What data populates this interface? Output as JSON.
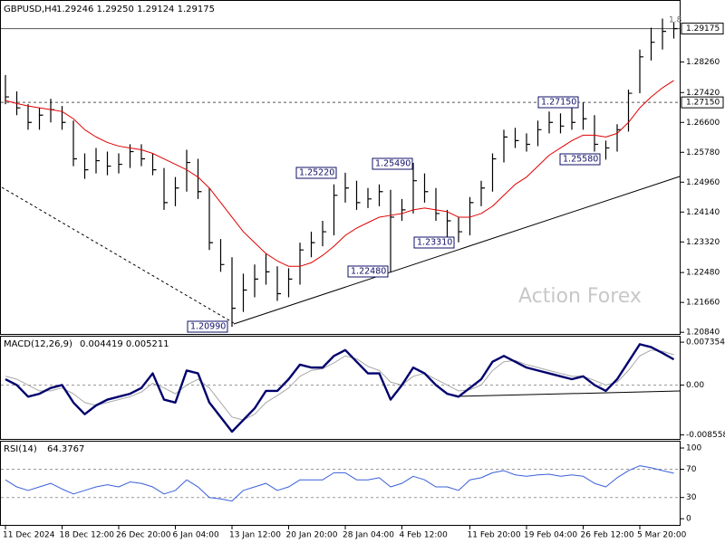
{
  "chart_data": [
    {
      "type": "ohlc",
      "title": "GBPUSD,H4",
      "subtitle": "1.29246 1.29250 1.29124 1.29175",
      "watermark": "Action Forex",
      "corner_note": "1.8",
      "color": "#000000",
      "categories": [
        "11 Dec 2024",
        null,
        null,
        null,
        null,
        "18 Dec 12:00",
        null,
        null,
        null,
        null,
        "26 Dec 20:00",
        null,
        null,
        null,
        null,
        "6 Jan 04:00",
        null,
        null,
        null,
        null,
        "13 Jan 12:00",
        null,
        null,
        null,
        null,
        "20 Jan 20:00",
        null,
        null,
        null,
        null,
        "28 Jan 04:00",
        null,
        null,
        null,
        null,
        "4 Feb 12:00",
        null,
        null,
        null,
        null,
        null,
        "11 Feb 20:00",
        null,
        null,
        null,
        null,
        "19 Feb 04:00",
        null,
        null,
        null,
        null,
        "26 Feb 12:00",
        null,
        null,
        null,
        null,
        "5 Mar 20:00",
        null,
        null,
        null
      ],
      "high": [
        1.279,
        1.2745,
        1.271,
        1.27,
        1.2725,
        1.2705,
        1.2665,
        1.2575,
        1.259,
        1.258,
        1.2575,
        1.26,
        1.26,
        1.2575,
        1.2535,
        1.251,
        1.2585,
        1.256,
        1.248,
        1.234,
        1.229,
        1.2245,
        1.227,
        1.23,
        1.2265,
        1.226,
        1.233,
        1.236,
        1.239,
        1.249,
        1.2522,
        1.25,
        1.248,
        1.249,
        1.2475,
        1.245,
        1.2549,
        1.252,
        1.248,
        1.242,
        1.24,
        1.2455,
        1.25,
        1.2575,
        1.264,
        1.2645,
        1.263,
        1.2665,
        1.269,
        1.2685,
        1.27,
        1.2715,
        1.268,
        1.261,
        1.2655,
        1.275,
        1.286,
        1.292,
        1.2945,
        1.2935
      ],
      "low": [
        1.271,
        1.268,
        1.264,
        1.264,
        1.266,
        1.264,
        1.254,
        1.2505,
        1.252,
        1.2515,
        1.252,
        1.2535,
        1.254,
        1.2515,
        1.242,
        1.243,
        1.247,
        1.245,
        1.231,
        1.225,
        1.2099,
        1.214,
        1.218,
        1.2215,
        1.217,
        1.218,
        1.2215,
        1.229,
        1.232,
        1.235,
        1.244,
        1.242,
        1.2425,
        1.243,
        1.2248,
        1.239,
        1.241,
        1.244,
        1.239,
        1.234,
        1.2331,
        1.235,
        1.243,
        1.247,
        1.255,
        1.259,
        1.258,
        1.2595,
        1.263,
        1.263,
        1.264,
        1.264,
        1.258,
        1.2558,
        1.258,
        1.2635,
        1.274,
        1.283,
        1.286,
        1.289
      ],
      "close": [
        1.273,
        1.27,
        1.266,
        1.268,
        1.2695,
        1.266,
        1.256,
        1.253,
        1.2555,
        1.254,
        1.2545,
        1.258,
        1.256,
        1.253,
        1.244,
        1.248,
        1.255,
        1.247,
        1.233,
        1.227,
        1.215,
        1.22,
        1.223,
        1.225,
        1.219,
        1.223,
        1.231,
        1.233,
        1.236,
        1.246,
        1.248,
        1.244,
        1.245,
        1.247,
        1.24,
        1.242,
        1.25,
        1.247,
        1.241,
        1.239,
        1.236,
        1.244,
        1.248,
        1.256,
        1.262,
        1.261,
        1.26,
        1.264,
        1.266,
        1.265,
        1.266,
        1.267,
        1.26,
        1.259,
        1.264,
        1.274,
        1.284,
        1.288,
        1.291,
        1.29175
      ],
      "moving_average": {
        "color": "#e00000",
        "values": [
          1.272,
          1.2712,
          1.2705,
          1.27,
          1.2695,
          1.269,
          1.267,
          1.264,
          1.262,
          1.2605,
          1.2595,
          1.259,
          1.2585,
          1.2575,
          1.256,
          1.2545,
          1.253,
          1.251,
          1.248,
          1.244,
          1.24,
          1.236,
          1.233,
          1.23,
          1.228,
          1.2265,
          1.2265,
          1.2275,
          1.2295,
          1.232,
          1.235,
          1.237,
          1.2385,
          1.24,
          1.2405,
          1.241,
          1.242,
          1.2425,
          1.242,
          1.2415,
          1.24,
          1.24,
          1.241,
          1.243,
          1.246,
          1.249,
          1.251,
          1.254,
          1.257,
          1.259,
          1.261,
          1.2625,
          1.2625,
          1.262,
          1.263,
          1.266,
          1.27,
          1.273,
          1.2755,
          1.2775
        ]
      },
      "levels": [
        {
          "value": 1.29175,
          "label": "1.29175"
        },
        {
          "value": 1.2715,
          "label": "1.27150"
        }
      ],
      "annotations": [
        {
          "value": 1.2099,
          "label": "1.20990"
        },
        {
          "value": 1.2248,
          "label": "1.22480"
        },
        {
          "value": 1.2522,
          "label": "1.25220"
        },
        {
          "value": 1.2549,
          "label": "1.25490"
        },
        {
          "value": 1.2331,
          "label": "1.23310"
        },
        {
          "value": 1.2715,
          "label": "1.27150"
        },
        {
          "value": 1.2558,
          "label": "1.25580"
        }
      ],
      "ylim": [
        1.2077,
        1.2991
      ],
      "yticks": [
        {
          "value": 1.2826,
          "label": "1.28260"
        },
        {
          "value": 1.2742,
          "label": "1.27420"
        },
        {
          "value": 1.266,
          "label": "1.26600"
        },
        {
          "value": 1.2578,
          "label": "1.25780"
        },
        {
          "value": 1.2496,
          "label": "1.24960"
        },
        {
          "value": 1.2414,
          "label": "1.24140"
        },
        {
          "value": 1.2332,
          "label": "1.23320"
        },
        {
          "value": 1.2248,
          "label": "1.22480"
        },
        {
          "value": 1.2166,
          "label": "1.21660"
        },
        {
          "value": 1.2084,
          "label": "1.20840"
        }
      ]
    },
    {
      "type": "line",
      "title": "MACD(12,26,9)",
      "subtitle": "0.004419 0.005211",
      "series": [
        {
          "color": "#00006e",
          "values": [
            0.001,
            0.0,
            -0.002,
            -0.0015,
            -0.0005,
            0.0,
            -0.003,
            -0.005,
            -0.0035,
            -0.0025,
            -0.002,
            -0.0015,
            -0.0005,
            0.002,
            -0.0025,
            -0.003,
            0.0025,
            0.002,
            -0.003,
            -0.0055,
            -0.008,
            -0.006,
            -0.004,
            -0.001,
            -0.001,
            0.001,
            0.0035,
            0.003,
            0.003,
            0.005,
            0.006,
            0.004,
            0.002,
            0.002,
            -0.0025,
            0.0,
            0.003,
            0.002,
            0.0,
            -0.0015,
            -0.002,
            -0.0005,
            0.001,
            0.004,
            0.005,
            0.004,
            0.003,
            0.0025,
            0.002,
            0.0015,
            0.001,
            0.0015,
            0.0,
            -0.001,
            0.001,
            0.004,
            0.007,
            0.0065,
            0.0055,
            0.0044
          ]
        },
        {
          "color": "#a8a8a8",
          "values": [
            0.0015,
            0.001,
            0.0,
            -0.001,
            -0.001,
            -0.0005,
            -0.0015,
            -0.003,
            -0.0035,
            -0.003,
            -0.0025,
            -0.002,
            -0.0012,
            0.0003,
            -0.0005,
            -0.0015,
            0.0,
            0.001,
            -0.0005,
            -0.003,
            -0.0055,
            -0.006,
            -0.005,
            -0.003,
            -0.0018,
            -0.0005,
            0.0015,
            0.0025,
            0.0028,
            0.0038,
            0.005,
            0.0045,
            0.0032,
            0.0025,
            0.0005,
            0.0,
            0.0015,
            0.002,
            0.001,
            0.0,
            -0.001,
            -0.0008,
            0.0,
            0.0025,
            0.004,
            0.0042,
            0.0035,
            0.003,
            0.0025,
            0.002,
            0.0015,
            0.0015,
            0.0008,
            0.0,
            0.0005,
            0.0025,
            0.005,
            0.006,
            0.0058,
            0.0052
          ]
        }
      ],
      "ylim": [
        -0.0094,
        0.0083
      ],
      "yticks": [
        0.007354,
        {
          "value": 0,
          "label": "0.00"
        },
        -0.008558
      ]
    },
    {
      "type": "line",
      "title": "RSI(14)",
      "subtitle": "64.3767",
      "series": [
        {
          "color": "#3a5fd9",
          "values": [
            55,
            45,
            40,
            45,
            50,
            42,
            35,
            40,
            45,
            48,
            45,
            52,
            50,
            45,
            35,
            40,
            55,
            45,
            30,
            28,
            25,
            40,
            45,
            50,
            40,
            45,
            55,
            55,
            55,
            65,
            65,
            55,
            55,
            58,
            45,
            50,
            60,
            55,
            45,
            45,
            40,
            55,
            58,
            65,
            68,
            62,
            60,
            62,
            63,
            60,
            62,
            60,
            50,
            45,
            58,
            68,
            75,
            72,
            68,
            64.3767
          ]
        }
      ],
      "ylim": [
        -10,
        109
      ],
      "yticks": [
        100,
        70,
        30,
        0
      ]
    }
  ]
}
